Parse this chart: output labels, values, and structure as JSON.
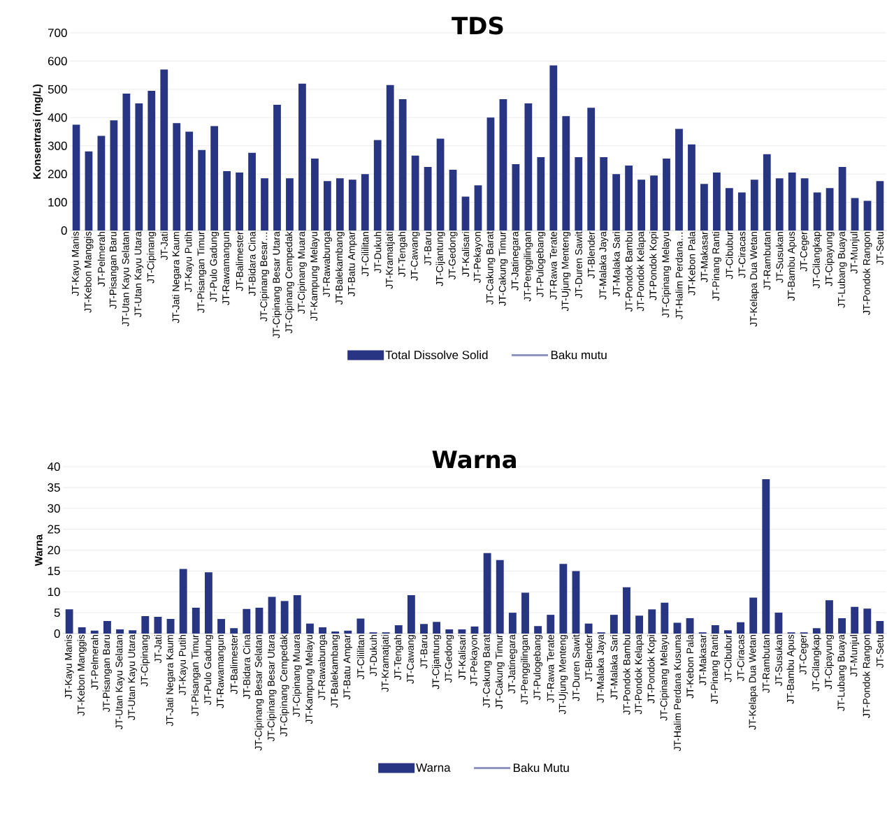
{
  "chart_data": [
    {
      "type": "bar",
      "title": "TDS",
      "ylabel": "Konsentrasi (mg/L)",
      "categories": [
        "JT-Kayu Manis",
        "JT-Kebon Manggis",
        "JT-Pelmerah",
        "JT-Pisangan Baru",
        "JT-Utan Kayu Selatan",
        "JT-Utan Kayu Utara",
        "JT-Cipinang",
        "JT-Jati",
        "JT-Jati Negara Kaum",
        "JT-Kayu Putih",
        "JT-Pisangan Timur",
        "JT-Pulo Gadung",
        "JT-Rawamangun",
        "JT-Balimester",
        "JT-Bidara Cina",
        "JT-Cipinang Besar…",
        "JT-Cipinang Besar Utara",
        "JT-Cipinang Cempedak",
        "JT-Cipinang Muara",
        "JT-Kampung Melayu",
        "JT-Rawabunga",
        "JT-Balekambang",
        "JT-Batu Ampar",
        "JT-Cililitan",
        "JT-Dukuh",
        "JT-Kramatjati",
        "JT-Tengah",
        "JT-Cawang",
        "JT-Baru",
        "JT-Cijantung",
        "JT-Gedong",
        "JT-Kalisari",
        "JT-Pekayon",
        "JT-Cakung Barat",
        "JT-Cakung Timur",
        "JT-Jatinegara",
        "JT-Penggilingan",
        "JT-Pulogebang",
        "JT-Rawa Terate",
        "JT-Ujung Menteng",
        "JT-Duren Sawit",
        "JT-Blender",
        "JT-Malaka Jaya",
        "JT-Malaka Sari",
        "JT-Pondok Bambu",
        "JT-Pondok Kelapa",
        "JT-Pondok Kopi",
        "JT-Cipinang Melayu",
        "JT-Halim Perdana…",
        "JT-Kebon Pala",
        "JT-Makasar",
        "JT-Pinang Ranti",
        "JT-Cibubur",
        "JT-Ciracas",
        "JT-Kelapa Dua Wetan",
        "JT-Rambutan",
        "JT-Susukan",
        "JT-Bambu Apus",
        "JT-Ceger",
        "JT-Cilangkap",
        "JT-Cipayung",
        "JT-Lubang Buaya",
        "JT-Munjul",
        "JT-Pondok Rangon",
        "JT-Setu"
      ],
      "series": [
        {
          "name": "Total Dissolve Solid",
          "color": "#283582",
          "values": [
            375,
            280,
            335,
            390,
            485,
            450,
            495,
            570,
            380,
            350,
            285,
            370,
            210,
            205,
            275,
            185,
            445,
            185,
            520,
            255,
            175,
            185,
            180,
            200,
            320,
            515,
            465,
            265,
            225,
            325,
            215,
            120,
            160,
            400,
            465,
            235,
            450,
            260,
            585,
            405,
            260,
            435,
            260,
            200,
            230,
            180,
            195,
            255,
            360,
            305,
            165,
            205,
            150,
            135,
            180,
            270,
            185,
            205,
            185,
            135,
            150,
            225,
            115,
            105,
            175
          ]
        },
        {
          "name": "Baku mutu",
          "type": "line",
          "color": "#8f95c0",
          "values": [
            null,
            null,
            null,
            null,
            null,
            null,
            null,
            null,
            null,
            null,
            null,
            null,
            null,
            null,
            null,
            null,
            null,
            null,
            null,
            null,
            null,
            null,
            null,
            null,
            null,
            null,
            null,
            null,
            null,
            null,
            null,
            null,
            null,
            null,
            null,
            null,
            null,
            null,
            null,
            null,
            null,
            null,
            null,
            null,
            null,
            null,
            null,
            null,
            null,
            null,
            null,
            null,
            null,
            null,
            null,
            null,
            null,
            null,
            null,
            null,
            null,
            null,
            null,
            null,
            null
          ]
        }
      ],
      "ylim": [
        0,
        700
      ],
      "yticks": [
        0,
        100,
        200,
        300,
        400,
        500,
        600,
        700
      ],
      "grid": "y",
      "legend": "bottom"
    },
    {
      "type": "bar",
      "title": "Warna",
      "ylabel": "Warna",
      "categories": [
        "JT-Kayu Manis",
        "JT-Kebon Manggis",
        "JT-Pelmerah",
        "JT-Pisangan Baru",
        "JT-Utan Kayu Selatan",
        "JT-Utan Kayu Utara",
        "JT-Cipinang",
        "JT-Jati",
        "JT-Jati Negara Kaum",
        "JT-Kayu Putih",
        "JT-Pisangan Timur",
        "JT-Pulo Gadung",
        "JT-Rawamangun",
        "JT-Balimester",
        "JT-Bidara Cina",
        "JT-Cipinang Besar Selatan",
        "JT-Cipinang Besar Utara",
        "JT-Cipinang Cempedak",
        "JT-Cipinang Muara",
        "JT-Kampung Melayu",
        "JT-Rawabunga",
        "JT-Balekambang",
        "JT-Batu Ampar",
        "JT-Cililitan",
        "JT-Dukuh",
        "JT-Kramatjati",
        "JT-Tengah",
        "JT-Cawang",
        "JT-Baru",
        "JT-Cijantung",
        "JT-Gedong",
        "JT-Kalisari",
        "JT-Pekayon",
        "JT-Cakung Barat",
        "JT-Cakung Timur",
        "JT-Jatinegara",
        "JT-Penggilingan",
        "JT-Pulogebang",
        "JT-Rawa Terate",
        "JT-Ujung Menteng",
        "JT-Duren Sawit",
        "JT-Blender",
        "JT-Malaka Jaya",
        "JT-Malaka Sari",
        "JT-Pondok Bambu",
        "JT-Pondok Kelapa",
        "JT-Pondok Kopi",
        "JT-Cipinang Melayu",
        "JT-Halim Perdana Kusuma",
        "JT-Kebon Pala",
        "JT-Makasar",
        "JT-Pinang Ranti",
        "JT-Cibubur",
        "JT-Ciracas",
        "JT-Kelapa Dua Wetan",
        "JT-Rambutan",
        "JT-Susukan",
        "JT-Bambu Apus",
        "JT-Ceger",
        "JT-Cilangkap",
        "JT-Cipayung",
        "JT-Lubang Buaya",
        "JT-Munjul",
        "JT-Pondok Rangon",
        "JT-Setu"
      ],
      "series": [
        {
          "name": "Warna",
          "color": "#283582",
          "values": [
            5.8,
            1.5,
            0.7,
            3,
            1,
            0.8,
            4.2,
            4,
            3.5,
            15.5,
            6.2,
            14.7,
            3.5,
            1.3,
            5.9,
            6.2,
            8.8,
            7.8,
            9.2,
            2.4,
            1.5,
            0.5,
            0.7,
            3.6,
            0.3,
            0.3,
            2,
            9.2,
            2.3,
            2.8,
            1,
            1,
            1.7,
            19.3,
            17.6,
            5,
            9.8,
            1.8,
            4.5,
            16.7,
            15,
            2.4,
            0.3,
            4.5,
            11.1,
            4.3,
            5.8,
            7.4,
            2.6,
            3.7,
            0.3,
            2,
            0.8,
            2.7,
            8.6,
            37,
            5,
            0.3,
            0.3,
            1.3,
            8,
            3.7,
            6.4,
            6,
            3
          ]
        },
        {
          "name": "Baku Mutu",
          "type": "line",
          "color": "#8f95c0",
          "values": [
            null,
            null,
            null,
            null,
            null,
            null,
            null,
            null,
            null,
            null,
            null,
            null,
            null,
            null,
            null,
            null,
            null,
            null,
            null,
            null,
            null,
            null,
            null,
            null,
            null,
            null,
            null,
            null,
            null,
            null,
            null,
            null,
            null,
            null,
            null,
            null,
            null,
            null,
            null,
            null,
            null,
            null,
            null,
            null,
            null,
            null,
            null,
            null,
            null,
            null,
            null,
            null,
            null,
            null,
            null,
            null,
            null,
            null,
            null,
            null,
            null,
            null,
            null,
            null,
            null
          ]
        }
      ],
      "ylim": [
        0,
        40
      ],
      "yticks": [
        0,
        5,
        10,
        15,
        20,
        25,
        30,
        35,
        40
      ],
      "grid": "y",
      "legend": "bottom"
    }
  ]
}
